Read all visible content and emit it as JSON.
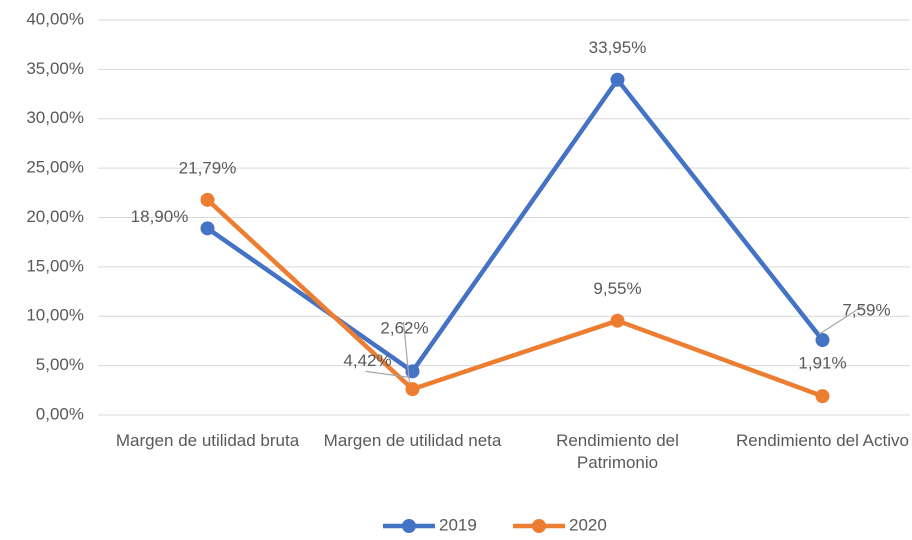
{
  "chart_data": {
    "type": "line",
    "categories": [
      "Margen de utilidad bruta",
      "Margen de utilidad neta",
      "Rendimiento del Patrimonio",
      "Rendimiento del Activo"
    ],
    "series": [
      {
        "name": "2019",
        "color": "#4472c4",
        "values": [
          18.9,
          4.42,
          33.95,
          7.59
        ],
        "value_labels": [
          "18,90%",
          "4,42%",
          "33,95%",
          "7,59%"
        ]
      },
      {
        "name": "2020",
        "color": "#ed7d31",
        "values": [
          21.79,
          2.62,
          9.55,
          1.91
        ],
        "value_labels": [
          "21,79%",
          "2,62%",
          "9,55%",
          "1,91%"
        ]
      }
    ],
    "ylim": [
      0,
      40
    ],
    "yticks": [
      {
        "value": 0,
        "label": "0,00%"
      },
      {
        "value": 5,
        "label": "5,00%"
      },
      {
        "value": 10,
        "label": "10,00%"
      },
      {
        "value": 15,
        "label": "15,00%"
      },
      {
        "value": 20,
        "label": "20,00%"
      },
      {
        "value": 25,
        "label": "25,00%"
      },
      {
        "value": 30,
        "label": "30,00%"
      },
      {
        "value": 35,
        "label": "35,00%"
      },
      {
        "value": 40,
        "label": "40,00%"
      }
    ],
    "grid": true,
    "legend": "bottom"
  }
}
